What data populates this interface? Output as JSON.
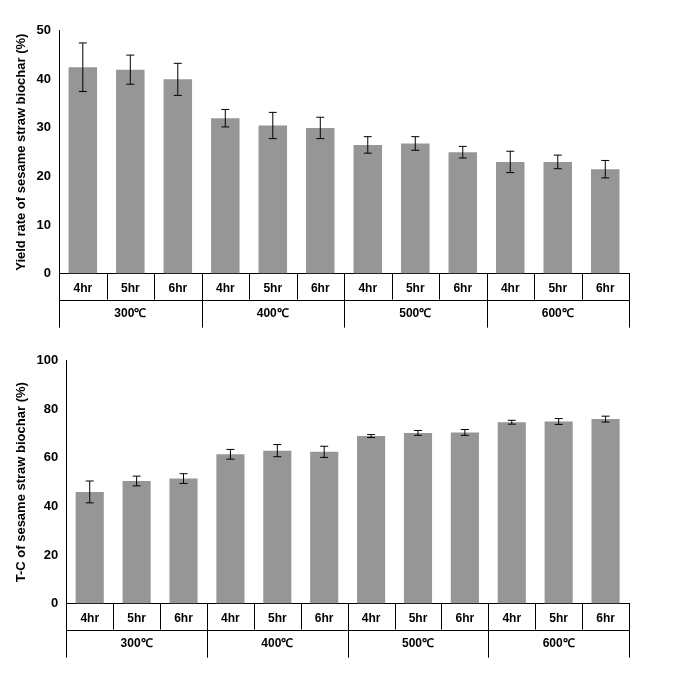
{
  "chart_data": [
    {
      "type": "bar",
      "y_label": "Yield rate of sesame straw biochar (%)",
      "categories": [
        "4hr",
        "5hr",
        "6hr",
        "4hr",
        "5hr",
        "6hr",
        "4hr",
        "5hr",
        "6hr",
        "4hr",
        "5hr",
        "6hr"
      ],
      "category_groups": [
        "300℃",
        "400℃",
        "500℃",
        "600℃"
      ],
      "values": [
        42.5,
        42,
        40,
        32,
        30.5,
        30,
        26.5,
        26.8,
        25,
        23,
        23,
        21.5
      ],
      "errors": [
        5,
        3,
        3.3,
        1.8,
        2.7,
        2.2,
        1.7,
        1.4,
        1.2,
        2.2,
        1.4,
        1.8
      ],
      "color": "#969696",
      "ylim": [
        0,
        50
      ],
      "yticks": [
        0,
        10,
        20,
        30,
        40,
        50
      ],
      "grid": false
    },
    {
      "type": "bar",
      "y_label": "T-C of sesame straw biochar (%)",
      "categories": [
        "4hr",
        "5hr",
        "6hr",
        "4hr",
        "5hr",
        "6hr",
        "4hr",
        "5hr",
        "6hr",
        "4hr",
        "5hr",
        "6hr"
      ],
      "category_groups": [
        "300℃",
        "400℃",
        "500℃",
        "600℃"
      ],
      "values": [
        46,
        50.5,
        51.5,
        61.5,
        63,
        62.5,
        69,
        70.3,
        70.5,
        74.7,
        75,
        76
      ],
      "errors": [
        4.5,
        2,
        2,
        2,
        2.5,
        2.3,
        0.6,
        1,
        1.2,
        0.8,
        1.2,
        1.2
      ],
      "color": "#969696",
      "ylim": [
        0,
        100
      ],
      "yticks": [
        0,
        20,
        40,
        60,
        80,
        100
      ],
      "grid": false
    }
  ]
}
